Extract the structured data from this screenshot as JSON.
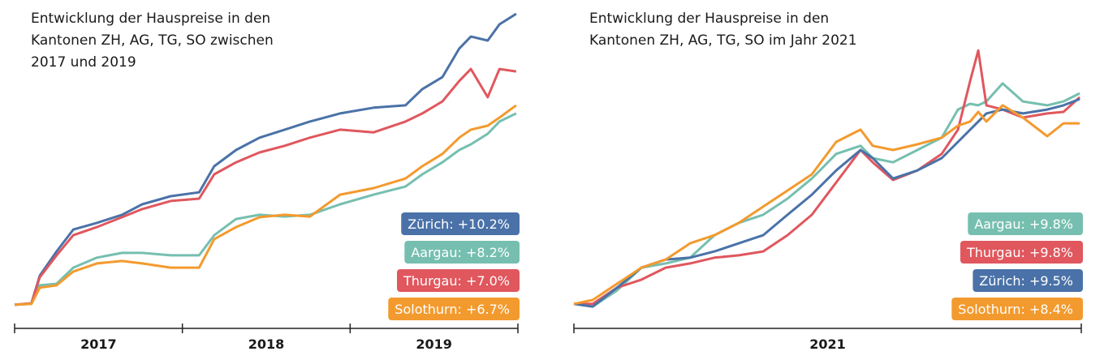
{
  "chart_data": [
    {
      "type": "line",
      "title": [
        "Entwicklung der Hauspreise in den",
        "Kantonen ZH, AG, TG, SO zwischen",
        "2017 und 2019"
      ],
      "x": [
        2017.0,
        2017.1,
        2017.15,
        2017.25,
        2017.35,
        2017.49,
        2017.64,
        2017.76,
        2017.93,
        2018.1,
        2018.19,
        2018.32,
        2018.46,
        2018.61,
        2018.76,
        2018.94,
        2019.14,
        2019.33,
        2019.43,
        2019.55,
        2019.65,
        2019.72,
        2019.82,
        2019.89,
        2019.99
      ],
      "xlim": [
        2017,
        2020
      ],
      "xticks": [
        2017,
        2018,
        2019,
        2020
      ],
      "xtick_labels": [
        {
          "value": 2017.5,
          "label": "2017"
        },
        {
          "value": 2018.5,
          "label": "2018"
        },
        {
          "value": 2019.5,
          "label": "2019"
        }
      ],
      "ylim": [
        0,
        100
      ],
      "series": [
        {
          "name": "Zürich: +10.2%",
          "color": "#4a72a8",
          "values": [
            1.1,
            1.6,
            10.8,
            18.9,
            26.2,
            28.4,
            31.1,
            34.6,
            37.3,
            38.6,
            47.3,
            52.7,
            56.8,
            59.5,
            62.2,
            64.9,
            66.8,
            67.6,
            73.0,
            77.0,
            86.5,
            90.5,
            89.2,
            94.6,
            98.1
          ]
        },
        {
          "name": "Aargau: +8.2%",
          "color": "#76bfb0",
          "values": [
            1.1,
            1.4,
            7.6,
            8.1,
            13.5,
            16.8,
            18.4,
            18.4,
            17.6,
            17.6,
            24.3,
            29.7,
            31.1,
            30.5,
            31.1,
            34.6,
            37.8,
            40.5,
            44.6,
            48.6,
            52.7,
            54.6,
            58.1,
            62.2,
            64.9
          ]
        },
        {
          "name": "Thurgau: +7.0%",
          "color": "#e0575e",
          "values": [
            1.1,
            1.6,
            10.3,
            17.6,
            24.3,
            27.0,
            30.3,
            33.0,
            35.7,
            36.5,
            44.6,
            48.6,
            51.9,
            54.1,
            56.8,
            59.5,
            58.6,
            62.2,
            64.9,
            68.9,
            75.7,
            79.7,
            70.3,
            79.7,
            78.9
          ]
        },
        {
          "name": "Solothurn: +6.7%",
          "color": "#f39a2e",
          "values": [
            1.1,
            1.4,
            6.8,
            7.6,
            12.2,
            14.9,
            15.7,
            14.9,
            13.5,
            13.5,
            23.0,
            27.0,
            30.3,
            31.1,
            30.5,
            37.8,
            40.0,
            43.2,
            47.3,
            51.4,
            56.8,
            59.5,
            60.8,
            63.5,
            67.6
          ]
        }
      ]
    },
    {
      "type": "line",
      "title": [
        "Entwicklung der Hauspreise in den",
        "Kantonen ZH, AG, TG, SO im Jahr 2021"
      ],
      "x": [
        2021.0,
        2021.037,
        2021.085,
        2021.133,
        2021.181,
        2021.229,
        2021.277,
        2021.325,
        2021.373,
        2021.421,
        2021.469,
        2021.517,
        2021.565,
        2021.589,
        2021.629,
        2021.677,
        2021.725,
        2021.757,
        2021.781,
        2021.797,
        2021.813,
        2021.845,
        2021.885,
        2021.933,
        2021.965,
        2021.997
      ],
      "xlim": [
        2021,
        2022
      ],
      "xticks": [
        2021,
        2022
      ],
      "xtick_labels": [
        {
          "value": 2021.5,
          "label": "2021"
        }
      ],
      "ylim": [
        0,
        100
      ],
      "series": [
        {
          "name": "Aargau: +9.8%",
          "color": "#76bfb0",
          "values": [
            1.4,
            0.5,
            5.9,
            13.5,
            14.9,
            16.8,
            24.3,
            28.4,
            31.1,
            36.5,
            43.2,
            51.4,
            54.1,
            50.0,
            48.6,
            52.7,
            56.8,
            66.2,
            68.1,
            67.6,
            68.9,
            74.9,
            68.9,
            67.6,
            68.9,
            71.6
          ]
        },
        {
          "name": "Thurgau: +9.8%",
          "color": "#e0575e",
          "values": [
            1.4,
            1.4,
            6.8,
            9.5,
            13.5,
            14.9,
            16.8,
            17.6,
            18.9,
            24.3,
            31.1,
            41.9,
            52.7,
            48.6,
            42.7,
            45.9,
            51.4,
            59.5,
            75.7,
            85.9,
            67.6,
            66.2,
            63.5,
            64.9,
            65.4,
            70.3
          ]
        },
        {
          "name": "Zürich: +9.5%",
          "color": "#4a72a8",
          "values": [
            1.4,
            0.5,
            6.8,
            13.5,
            16.2,
            16.8,
            18.9,
            21.6,
            24.3,
            31.1,
            37.8,
            45.9,
            52.7,
            50.0,
            43.2,
            45.9,
            50.0,
            55.4,
            59.5,
            62.2,
            64.9,
            66.2,
            64.9,
            66.2,
            67.6,
            69.7
          ]
        },
        {
          "name": "Solothurn: +8.4%",
          "color": "#f39a2e",
          "values": [
            1.4,
            2.7,
            8.1,
            13.5,
            16.2,
            21.6,
            24.3,
            28.4,
            33.8,
            39.2,
            44.6,
            55.4,
            59.5,
            54.1,
            52.7,
            54.6,
            56.8,
            60.8,
            62.2,
            65.4,
            62.2,
            67.6,
            63.5,
            57.3,
            61.6,
            61.6
          ]
        }
      ]
    }
  ]
}
